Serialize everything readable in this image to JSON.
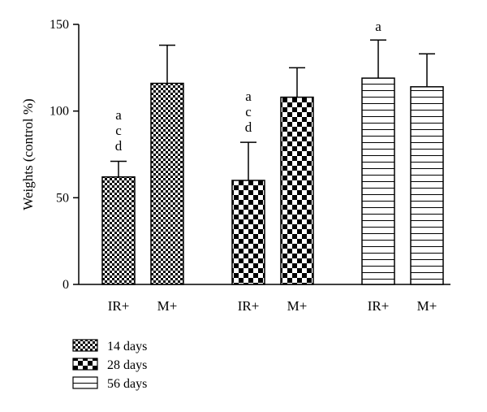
{
  "chart_data": {
    "type": "bar",
    "ylabel": "Weights (control %)",
    "ylim": [
      0,
      150
    ],
    "yticks": [
      0,
      50,
      100,
      150
    ],
    "bars": [
      {
        "category": "IR+",
        "series": "14 days",
        "value": 62,
        "error": 9,
        "significance": [
          "a",
          "c",
          "d"
        ]
      },
      {
        "category": "M+",
        "series": "14 days",
        "value": 116,
        "error": 22,
        "significance": []
      },
      {
        "category": "IR+",
        "series": "28 days",
        "value": 60,
        "error": 22,
        "significance": [
          "a",
          "c",
          "d"
        ]
      },
      {
        "category": "M+",
        "series": "28 days",
        "value": 108,
        "error": 17,
        "significance": []
      },
      {
        "category": "IR+",
        "series": "56 days",
        "value": 119,
        "error": 22,
        "significance": [
          "a"
        ]
      },
      {
        "category": "M+",
        "series": "56 days",
        "value": 114,
        "error": 19,
        "significance": []
      }
    ],
    "legend": [
      {
        "label": "14 days",
        "pattern": "fine-checker"
      },
      {
        "label": "28 days",
        "pattern": "coarse-checker"
      },
      {
        "label": "56 days",
        "pattern": "horizontal-lines"
      }
    ],
    "legend_position": "bottom-left"
  }
}
